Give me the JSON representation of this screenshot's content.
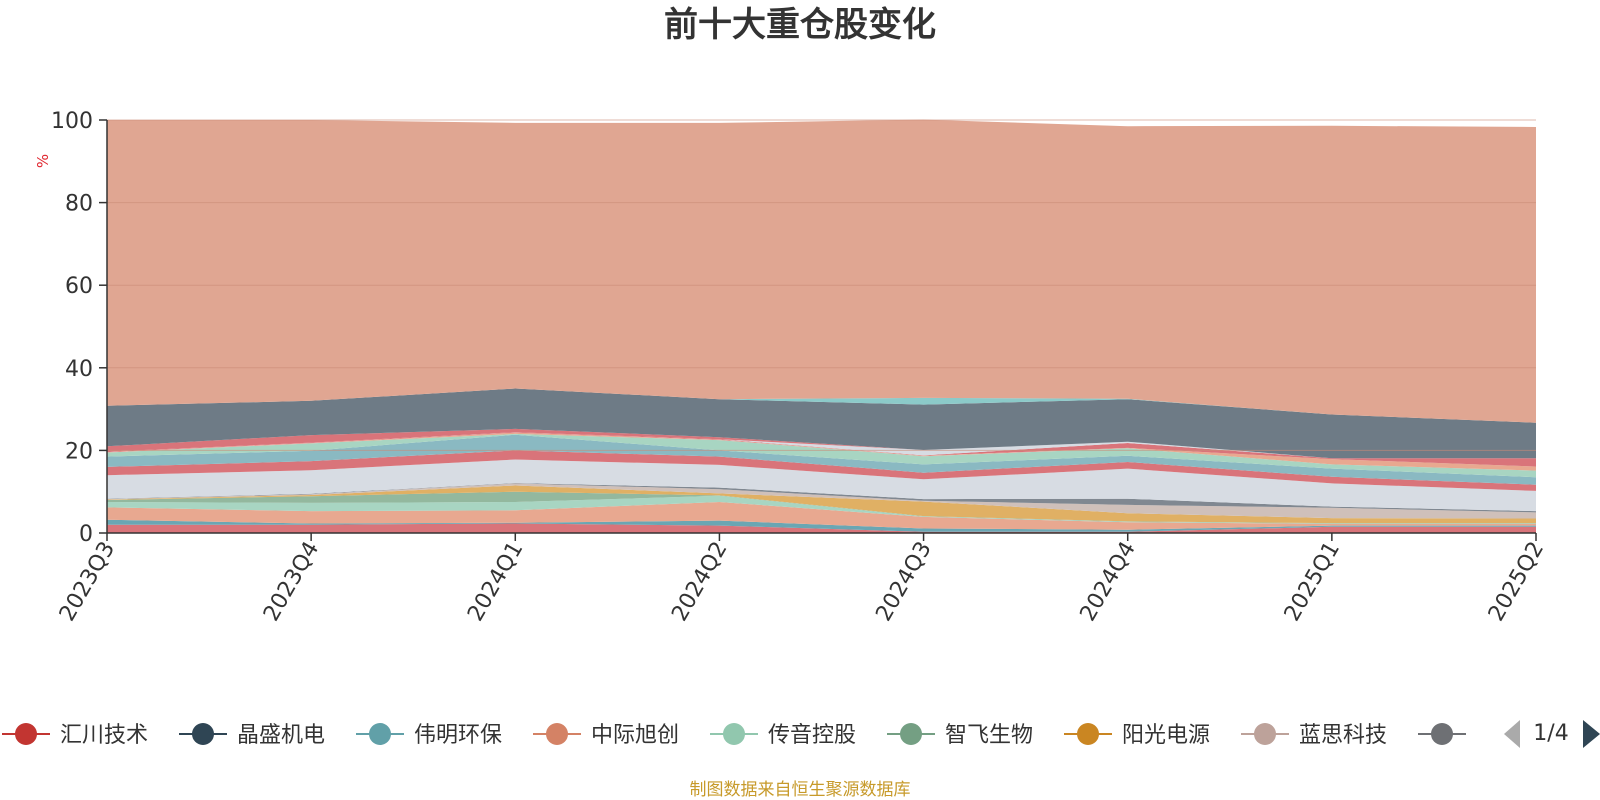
{
  "chart_data": {
    "type": "area",
    "stacked": true,
    "title": "前十大重仓股变化",
    "y_unit": "%",
    "ylim": [
      0,
      100
    ],
    "y_ticks": [
      0,
      20,
      40,
      60,
      80,
      100
    ],
    "grid": true,
    "x": [
      "2023Q3",
      "2023Q4",
      "2024Q1",
      "2024Q2",
      "2024Q3",
      "2024Q4",
      "2025Q1",
      "2025Q2"
    ],
    "series": [
      {
        "values": [
          2.0,
          2.0,
          2.3,
          1.8,
          0.3,
          0.3,
          1.5,
          1.5
        ],
        "color": "#d9747a"
      },
      {
        "values": [
          1.2,
          0.3,
          0.2,
          1.2,
          0.8,
          0.5,
          0.3,
          0.3
        ],
        "color": "#6aa6b3"
      },
      {
        "values": [
          3.0,
          3.0,
          3.0,
          4.5,
          2.8,
          1.8,
          0.4,
          0.4
        ],
        "color": "#e8a890"
      },
      {
        "values": [
          1.3,
          2.0,
          2.0,
          1.5,
          0.1,
          0.1,
          0.1,
          0.1
        ],
        "color": "#a8d5c2"
      },
      {
        "values": [
          0.5,
          1.6,
          2.5,
          0.1,
          0.1,
          0.1,
          0.1,
          0.1
        ],
        "color": "#93b89e"
      },
      {
        "values": [
          0.1,
          0.3,
          1.5,
          0.5,
          3.5,
          2.0,
          1.2,
          1.1
        ],
        "color": "#e0b064"
      },
      {
        "values": [
          0.1,
          0.2,
          0.5,
          1.0,
          0.2,
          2.0,
          2.5,
          1.5
        ],
        "color": "#cfc0ba"
      },
      {
        "values": [
          0.1,
          0.1,
          0.1,
          0.4,
          0.4,
          1.5,
          0.3,
          0.3
        ],
        "color": "#808891"
      },
      {
        "values": [
          5.7,
          5.7,
          5.7,
          5.5,
          4.8,
          7.3,
          5.6,
          4.9
        ],
        "color": "#d7dce3"
      },
      {
        "values": [
          2.0,
          2.2,
          2.2,
          2.0,
          1.6,
          1.6,
          1.6,
          1.5
        ],
        "color": "#d9747a"
      },
      {
        "values": [
          2.5,
          2.5,
          3.8,
          1.5,
          2.0,
          1.5,
          2.0,
          1.8
        ],
        "color": "#8ab9c2"
      },
      {
        "values": [
          1.0,
          1.8,
          0.2,
          2.5,
          2.0,
          1.8,
          1.0,
          1.6
        ],
        "color": "#a8d5c2"
      },
      {
        "values": [
          0.1,
          0.1,
          0.3,
          0.1,
          0.1,
          0.1,
          1.3,
          1.0
        ],
        "color": "#e8a890"
      },
      {
        "values": [
          0.1,
          0.1,
          0.1,
          0.1,
          0.1,
          1.2,
          0.2,
          2.0
        ],
        "color": "#d9747a"
      },
      {
        "values": [
          0.0,
          0.0,
          0.0,
          0.0,
          1.3,
          0.3,
          0.0,
          0.0
        ],
        "color": "#d7dce3"
      },
      {
        "values": [
          1.3,
          1.8,
          0.8,
          0.5,
          0.0,
          0.0,
          0.0,
          0.0
        ],
        "color": "#d9747a"
      },
      {
        "values": [
          9.8,
          8.3,
          9.8,
          9.2,
          11.0,
          10.3,
          10.6,
          8.6
        ],
        "color": "#6e7b86"
      },
      {
        "values": [
          0.0,
          0.0,
          0.0,
          0.0,
          1.6,
          0.1,
          0.0,
          0.0
        ],
        "color": "#8ccac9"
      },
      {
        "values": [
          69.2,
          68.0,
          64.3,
          66.9,
          67.4,
          66.0,
          69.9,
          71.6
        ],
        "color": "#e0a692"
      }
    ]
  },
  "legend": {
    "items": [
      {
        "label": "汇川技术",
        "color": "#c23531",
        "icon": "circle-marker"
      },
      {
        "label": "晶盛机电",
        "color": "#2f4554",
        "icon": "circle-marker"
      },
      {
        "label": "伟明环保",
        "color": "#61a0a8",
        "icon": "circle-marker"
      },
      {
        "label": "中际旭创",
        "color": "#d48265",
        "icon": "circle-marker"
      },
      {
        "label": "传音控股",
        "color": "#91c7ae",
        "icon": "circle-marker"
      },
      {
        "label": "智飞生物",
        "color": "#749f83",
        "icon": "circle-marker"
      },
      {
        "label": "阳光电源",
        "color": "#ca8622",
        "icon": "circle-marker"
      },
      {
        "label": "蓝思科技",
        "color": "#bda29a",
        "icon": "circle-marker"
      },
      {
        "label": "",
        "color": "#6e7074",
        "icon": "circle-marker"
      }
    ],
    "page": "1/4",
    "prev_icon": "triangle-left-icon",
    "next_icon": "triangle-right-icon"
  },
  "source": "制图数据来自恒生聚源数据库"
}
